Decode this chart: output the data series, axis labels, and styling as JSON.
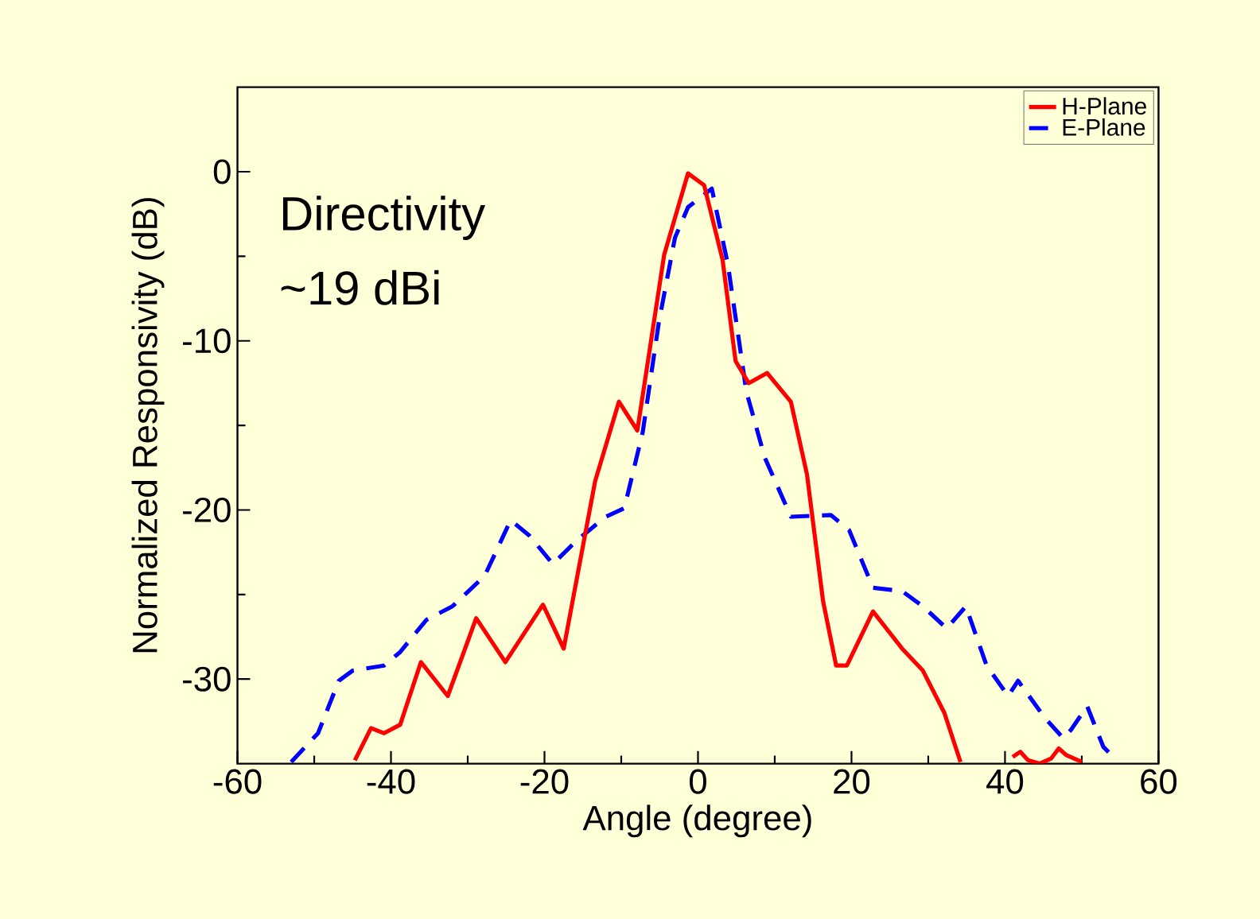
{
  "chart_data": {
    "type": "line",
    "xlabel": "Angle (degree)",
    "ylabel": "Normalized Responsivity (dB)",
    "xlim": [
      -60,
      60
    ],
    "xticks": [
      -60,
      -40,
      -20,
      0,
      20,
      40,
      60
    ],
    "ylim": [
      -35,
      5
    ],
    "yticks": [
      -30,
      -20,
      -10,
      0
    ],
    "legend": "top right",
    "grid": false,
    "annotations": [
      "Directivity",
      "~19 dBi"
    ],
    "series": [
      {
        "name": "H-Plane",
        "color": "#ff0000",
        "line_style": "solid",
        "x": [
          -44.7,
          -42.6,
          -40.9,
          -38.8,
          -36.1,
          -32.6,
          -28.9,
          -25.1,
          -20.2,
          -17.5,
          -13.4,
          -10.3,
          -7.9,
          -4.4,
          -1.3,
          0.8,
          3.2,
          4.9,
          6.6,
          9.0,
          12.1,
          14.2,
          16.3,
          18.0,
          19.4,
          22.8,
          26.6,
          29.3,
          32.1,
          34.2,
          37.0,
          41.0,
          42.0,
          43.0,
          44.5,
          46.0,
          47.0,
          48.0,
          50.0
        ],
        "values": [
          -34.8,
          -32.9,
          -33.2,
          -32.7,
          -29.0,
          -31.0,
          -26.4,
          -29.0,
          -25.6,
          -28.2,
          -18.3,
          -13.6,
          -15.3,
          -4.9,
          -0.1,
          -0.8,
          -5.2,
          -11.2,
          -12.5,
          -11.9,
          -13.6,
          -17.9,
          -25.4,
          -29.2,
          -29.2,
          -26.0,
          -28.2,
          -29.5,
          -32.0,
          -34.9,
          null,
          -34.6,
          -34.3,
          -34.8,
          -35,
          -34.7,
          -34.1,
          -34.5,
          -34.9
        ]
      },
      {
        "name": "E-Plane",
        "color": "#0000ff",
        "line_style": "dashed",
        "x": [
          -53.0,
          -49.5,
          -46.8,
          -45.0,
          -40.9,
          -38.8,
          -35.4,
          -32.0,
          -27.8,
          -24.4,
          -22.0,
          -18.9,
          -15.8,
          -12.0,
          -9.6,
          -7.2,
          -5.1,
          -3.0,
          -1.3,
          1.8,
          3.9,
          6.3,
          8.7,
          12.1,
          17.3,
          19.7,
          22.8,
          26.6,
          29.3,
          32.4,
          34.9,
          37.6,
          40.4,
          41.7,
          45.2,
          47.6,
          48.6,
          50.7,
          52.8,
          54.1
        ],
        "values": [
          -34.9,
          -33.2,
          -30.1,
          -29.5,
          -29.2,
          -28.4,
          -26.5,
          -25.7,
          -23.9,
          -20.6,
          -21.5,
          -23.2,
          -21.8,
          -20.4,
          -19.9,
          -15.4,
          -8.9,
          -3.9,
          -2.1,
          -1.0,
          -5.5,
          -13.0,
          -16.9,
          -20.4,
          -20.3,
          -21.2,
          -24.6,
          -24.8,
          -25.7,
          -27.0,
          -25.7,
          -29.2,
          -31.0,
          -30.1,
          -32.3,
          -33.5,
          -33.0,
          -31.6,
          -34.0,
          -34.6
        ]
      }
    ]
  }
}
